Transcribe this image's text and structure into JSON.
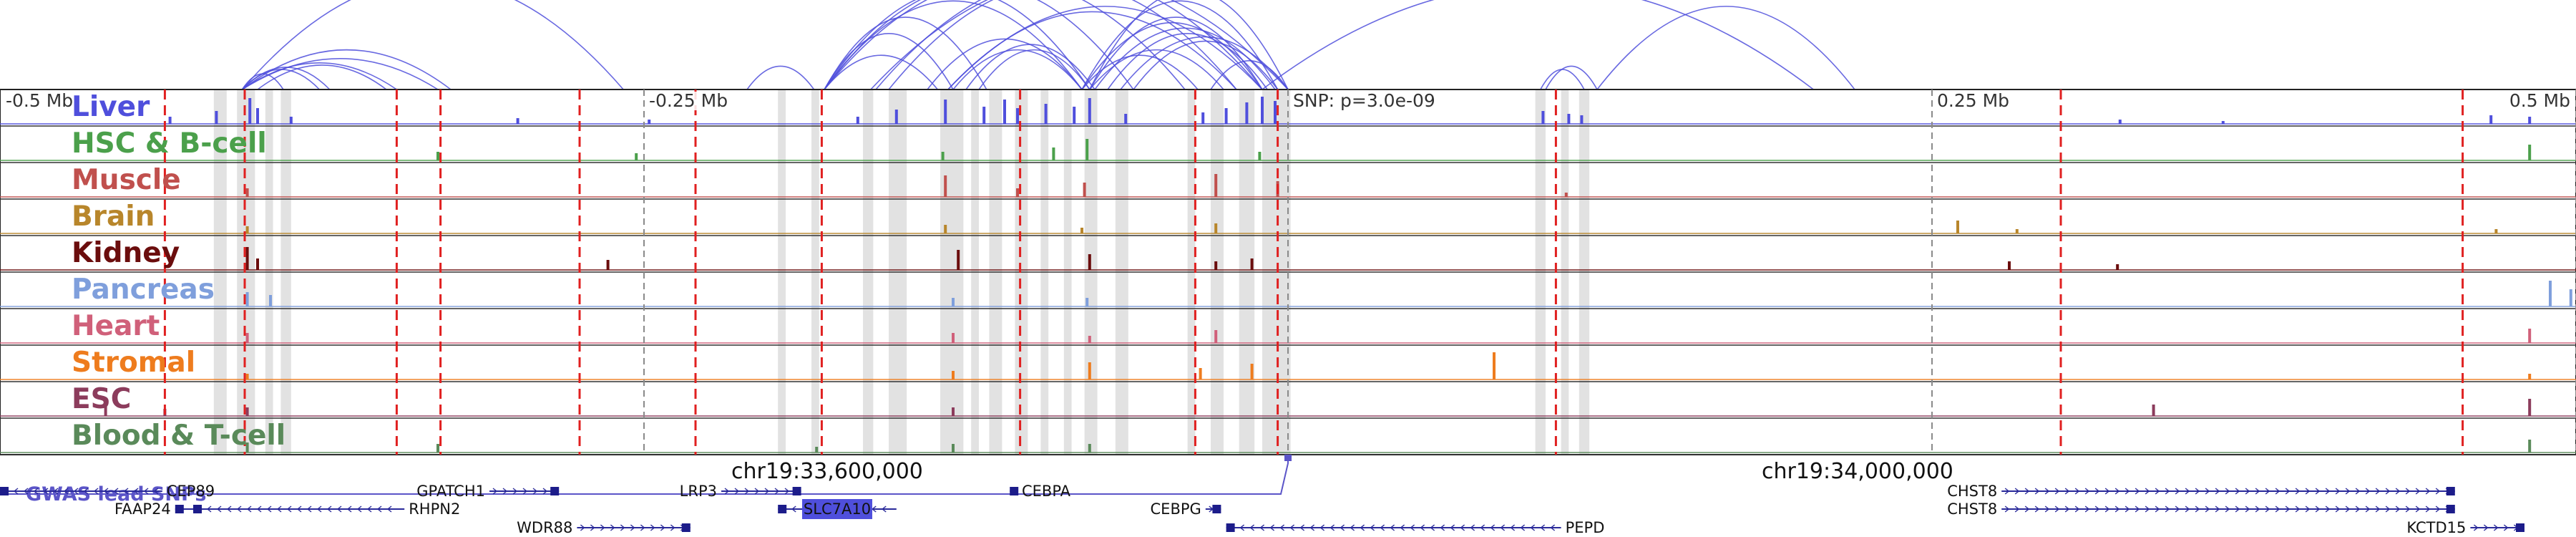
{
  "chart_data": {
    "type": "genome-browser",
    "region": {
      "start": 33280000,
      "end": 34280000
    },
    "scale_labels": [
      {
        "text": "-0.5 Mb",
        "pos": 33280000
      },
      {
        "text": "-0.25 Mb",
        "pos": 33530000
      },
      {
        "text": "SNP: p=3.0e-09",
        "pos": 33780000
      },
      {
        "text": "0.25 Mb",
        "pos": 34030000
      },
      {
        "text": "0.5 Mb",
        "pos": 34280000
      }
    ],
    "coordinate_labels": [
      {
        "text": "chr19:33,600,000",
        "pos": 33600000
      },
      {
        "text": "chr19:34,000,000",
        "pos": 34000000
      }
    ],
    "lead_snp": {
      "label": "SNP: p=3.0e-09",
      "pos": 33780000,
      "p_value": "3.0e-09"
    },
    "gwas_label": "GWAS lead SNPs",
    "gwas_snps": [
      33279000,
      33780000
    ],
    "tracks": [
      {
        "name": "Liver",
        "color": "#4f4fdc"
      },
      {
        "name": "HSC & B-cell",
        "color": "#4ba04b"
      },
      {
        "name": "Muscle",
        "color": "#c0504d"
      },
      {
        "name": "Brain",
        "color": "#b8862b"
      },
      {
        "name": "Kidney",
        "color": "#6b0d0d"
      },
      {
        "name": "Pancreas",
        "color": "#7f9fdc"
      },
      {
        "name": "Heart",
        "color": "#d0607a"
      },
      {
        "name": "Stromal",
        "color": "#ee7c1e"
      },
      {
        "name": "ESC",
        "color": "#8c3c5c"
      },
      {
        "name": "Blood & T-cell",
        "color": "#5a8a5a"
      }
    ],
    "red_lines": [
      33344000,
      33375000,
      33434000,
      33451000,
      33505000,
      33550000,
      33599000,
      33676000,
      33744000,
      33776000,
      33884000,
      34080000,
      34236000
    ],
    "gray_lines": [
      33530000,
      33780000,
      34030000,
      34280000
    ],
    "shaded_regions": [
      [
        33363000,
        33368000
      ],
      [
        33372000,
        33379000
      ],
      [
        33383000,
        33386000
      ],
      [
        33389000,
        33393000
      ],
      [
        33582000,
        33585000
      ],
      [
        33595000,
        33598000
      ],
      [
        33615000,
        33619000
      ],
      [
        33625000,
        33632000
      ],
      [
        33645000,
        33654000
      ],
      [
        33657000,
        33660000
      ],
      [
        33664000,
        33669000
      ],
      [
        33674000,
        33679000
      ],
      [
        33684000,
        33687000
      ],
      [
        33693000,
        33696000
      ],
      [
        33701000,
        33706000
      ],
      [
        33713000,
        33718000
      ],
      [
        33741000,
        33744000
      ],
      [
        33750000,
        33755000
      ],
      [
        33761000,
        33767000
      ],
      [
        33770000,
        33781000
      ],
      [
        33876000,
        33880000
      ],
      [
        33886000,
        33889000
      ],
      [
        33893000,
        33897000
      ]
    ],
    "peaks": [
      [
        [
          33346000,
          0.25
        ],
        [
          33364000,
          0.45
        ],
        [
          33377000,
          0.9
        ],
        [
          33380000,
          0.55
        ],
        [
          33393000,
          0.25
        ],
        [
          33481000,
          0.2
        ],
        [
          33532000,
          0.15
        ],
        [
          33613000,
          0.25
        ],
        [
          33628000,
          0.5
        ],
        [
          33647000,
          0.85
        ],
        [
          33662000,
          0.6
        ],
        [
          33670000,
          0.85
        ],
        [
          33675000,
          0.55
        ],
        [
          33686000,
          0.7
        ],
        [
          33697000,
          0.6
        ],
        [
          33703000,
          0.9
        ],
        [
          33717000,
          0.35
        ],
        [
          33747000,
          0.4
        ],
        [
          33756000,
          0.55
        ],
        [
          33764000,
          0.75
        ],
        [
          33770000,
          0.95
        ],
        [
          33775000,
          0.8
        ],
        [
          33879000,
          0.45
        ],
        [
          33889000,
          0.35
        ],
        [
          33894000,
          0.3
        ],
        [
          34103000,
          0.15
        ],
        [
          34143000,
          0.1
        ],
        [
          34247000,
          0.3
        ],
        [
          34262000,
          0.25
        ]
      ],
      [
        [
          33450000,
          0.3
        ],
        [
          33527000,
          0.25
        ],
        [
          33646000,
          0.3
        ],
        [
          33689000,
          0.45
        ],
        [
          33702000,
          0.75
        ],
        [
          33769000,
          0.3
        ],
        [
          34262000,
          0.55
        ]
      ],
      [
        [
          33376000,
          0.3
        ],
        [
          33647000,
          0.75
        ],
        [
          33675000,
          0.3
        ],
        [
          33701000,
          0.5
        ],
        [
          33752000,
          0.8
        ],
        [
          33776000,
          0.55
        ],
        [
          33888000,
          0.15
        ]
      ],
      [
        [
          33376000,
          0.25
        ],
        [
          33647000,
          0.3
        ],
        [
          33700000,
          0.2
        ],
        [
          33752000,
          0.35
        ],
        [
          34040000,
          0.45
        ],
        [
          34063000,
          0.15
        ],
        [
          34249000,
          0.15
        ]
      ],
      [
        [
          33376000,
          0.8
        ],
        [
          33380000,
          0.4
        ],
        [
          33516000,
          0.35
        ],
        [
          33652000,
          0.7
        ],
        [
          33703000,
          0.55
        ],
        [
          33752000,
          0.3
        ],
        [
          33766000,
          0.4
        ],
        [
          34060000,
          0.3
        ],
        [
          34102000,
          0.2
        ]
      ],
      [
        [
          33376000,
          0.5
        ],
        [
          33385000,
          0.4
        ],
        [
          33650000,
          0.3
        ],
        [
          33702000,
          0.3
        ],
        [
          34270000,
          0.9
        ],
        [
          34278000,
          0.6
        ]
      ],
      [
        [
          33376000,
          0.35
        ],
        [
          33650000,
          0.35
        ],
        [
          33703000,
          0.25
        ],
        [
          33752000,
          0.45
        ],
        [
          34262000,
          0.5
        ]
      ],
      [
        [
          33376000,
          0.2
        ],
        [
          33650000,
          0.3
        ],
        [
          33703000,
          0.6
        ],
        [
          33746000,
          0.4
        ],
        [
          33766000,
          0.55
        ],
        [
          33860000,
          0.95
        ],
        [
          34262000,
          0.2
        ]
      ],
      [
        [
          33321000,
          0.35
        ],
        [
          33344000,
          0.25
        ],
        [
          33376000,
          0.3
        ],
        [
          33650000,
          0.3
        ],
        [
          34116000,
          0.4
        ],
        [
          34262000,
          0.6
        ]
      ],
      [
        [
          33376000,
          0.35
        ],
        [
          33450000,
          0.3
        ],
        [
          33597000,
          0.2
        ],
        [
          33650000,
          0.3
        ],
        [
          33703000,
          0.3
        ],
        [
          34262000,
          0.45
        ]
      ]
    ],
    "arcs": [
      [
        33374000,
        33434000,
        0.18
      ],
      [
        33374000,
        33404000,
        0.12
      ],
      [
        33374000,
        33390000,
        0.08
      ],
      [
        33374000,
        33455000,
        0.3
      ],
      [
        33374000,
        33522000,
        0.95
      ],
      [
        33374000,
        33450000,
        0.22
      ],
      [
        33380000,
        33430000,
        0.16
      ],
      [
        33374000,
        33408000,
        0.14
      ],
      [
        33570000,
        33596000,
        0.15
      ],
      [
        33600000,
        33644000,
        0.25
      ],
      [
        33600000,
        33650000,
        0.45
      ],
      [
        33600000,
        33663000,
        0.6
      ],
      [
        33600000,
        33700000,
        0.75
      ],
      [
        33600000,
        33720000,
        0.9
      ],
      [
        33600000,
        33703000,
        0.85
      ],
      [
        33640000,
        33700000,
        0.4
      ],
      [
        33650000,
        33700000,
        0.3
      ],
      [
        33655000,
        33705000,
        0.35
      ],
      [
        33660000,
        33703000,
        0.3
      ],
      [
        33648000,
        33770000,
        0.7
      ],
      [
        33648000,
        33760000,
        0.65
      ],
      [
        33700000,
        33770000,
        0.55
      ],
      [
        33700000,
        33776000,
        0.75
      ],
      [
        33703000,
        33780000,
        0.85
      ],
      [
        33703000,
        33770000,
        0.6
      ],
      [
        33705000,
        33775000,
        0.5
      ],
      [
        33710000,
        33772000,
        0.45
      ],
      [
        33715000,
        33780000,
        0.42
      ],
      [
        33720000,
        33776000,
        0.38
      ],
      [
        33703000,
        33755000,
        0.3
      ],
      [
        33700000,
        33745000,
        0.25
      ],
      [
        33600000,
        33740000,
        0.95
      ],
      [
        33620000,
        33770000,
        0.98
      ],
      [
        33625000,
        33760000,
        0.92
      ],
      [
        33618000,
        33780000,
        0.96
      ],
      [
        33750000,
        33780000,
        0.2
      ],
      [
        33770000,
        33984000,
        0.9
      ],
      [
        33900000,
        34000000,
        0.7
      ],
      [
        33880000,
        33900000,
        0.15
      ],
      [
        33878000,
        33895000,
        0.12
      ]
    ],
    "genes": [
      {
        "name": "CEP89",
        "start": 33280000,
        "end": 33343000,
        "strand": "-",
        "row": 0,
        "label_side": "right"
      },
      {
        "name": "GPATCH1",
        "start": 33470000,
        "end": 33497000,
        "strand": "+",
        "row": 0,
        "label_side": "left"
      },
      {
        "name": "LRP3",
        "start": 33560000,
        "end": 33591000,
        "strand": "+",
        "row": 0,
        "label_side": "left"
      },
      {
        "name": "CEBPA",
        "start": 33672000,
        "end": 33675000,
        "strand": "-",
        "row": 0,
        "label_side": "right"
      },
      {
        "name": "CHST8",
        "start": 34057000,
        "end": 34233000,
        "strand": "+",
        "row": 0,
        "label_side": "left"
      },
      {
        "name": "FAAP24",
        "start": 33348000,
        "end": 33355000,
        "strand": "-",
        "row": 1,
        "label_side": "left"
      },
      {
        "name": "RHPN2",
        "start": 33355000,
        "end": 33437000,
        "strand": "-",
        "row": 1,
        "label_side": "right"
      },
      {
        "name": "SLC7A10",
        "start": 33582000,
        "end": 33628000,
        "strand": "-",
        "row": 1,
        "label_side": "inside"
      },
      {
        "name": "CEBPG",
        "start": 33748000,
        "end": 33754000,
        "strand": "+",
        "row": 1,
        "label_side": "left"
      },
      {
        "name": "CHST8",
        "start": 34057000,
        "end": 34233000,
        "strand": "+",
        "row": 1,
        "label_side": "left"
      },
      {
        "name": "WDR88",
        "start": 33504000,
        "end": 33548000,
        "strand": "+",
        "row": 2,
        "label_side": "left"
      },
      {
        "name": "PEPD",
        "start": 33756000,
        "end": 33886000,
        "strand": "-",
        "row": 2,
        "label_side": "right"
      },
      {
        "name": "KCTD15",
        "start": 34239000,
        "end": 34260000,
        "strand": "+",
        "row": 2,
        "label_side": "left"
      }
    ]
  }
}
